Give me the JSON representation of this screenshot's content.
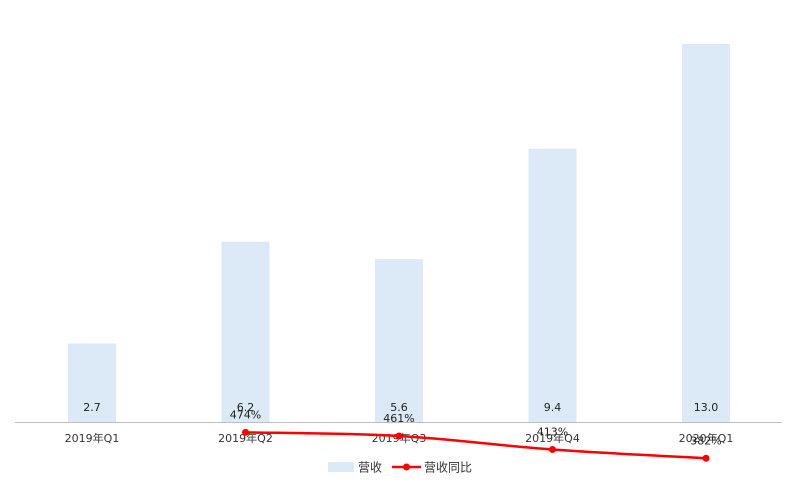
{
  "chart_data": {
    "type": "bar",
    "categories": [
      "2019年Q1",
      "2019年Q2",
      "2019年Q3",
      "2019年Q4",
      "2020年Q1"
    ],
    "series": [
      {
        "name": "营收",
        "type": "bar",
        "values": [
          2.7,
          6.2,
          5.6,
          9.4,
          13.0
        ],
        "labels": [
          "2.7",
          "6.2",
          "5.6",
          "9.4",
          "13.0"
        ],
        "color": "#dce9f6"
      },
      {
        "name": "营收同比",
        "type": "line",
        "values": [
          null,
          474,
          461,
          413,
          382
        ],
        "labels": [
          "",
          "474%",
          "461%",
          "413%",
          "382%"
        ],
        "color": "#ff0000"
      }
    ],
    "bar_axis_range": [
      0,
      13.0
    ],
    "line_axis_range": [
      0,
      1000
    ],
    "title": "",
    "xlabel": "",
    "ylabel": "",
    "grid": false,
    "legend_position": "bottom"
  }
}
